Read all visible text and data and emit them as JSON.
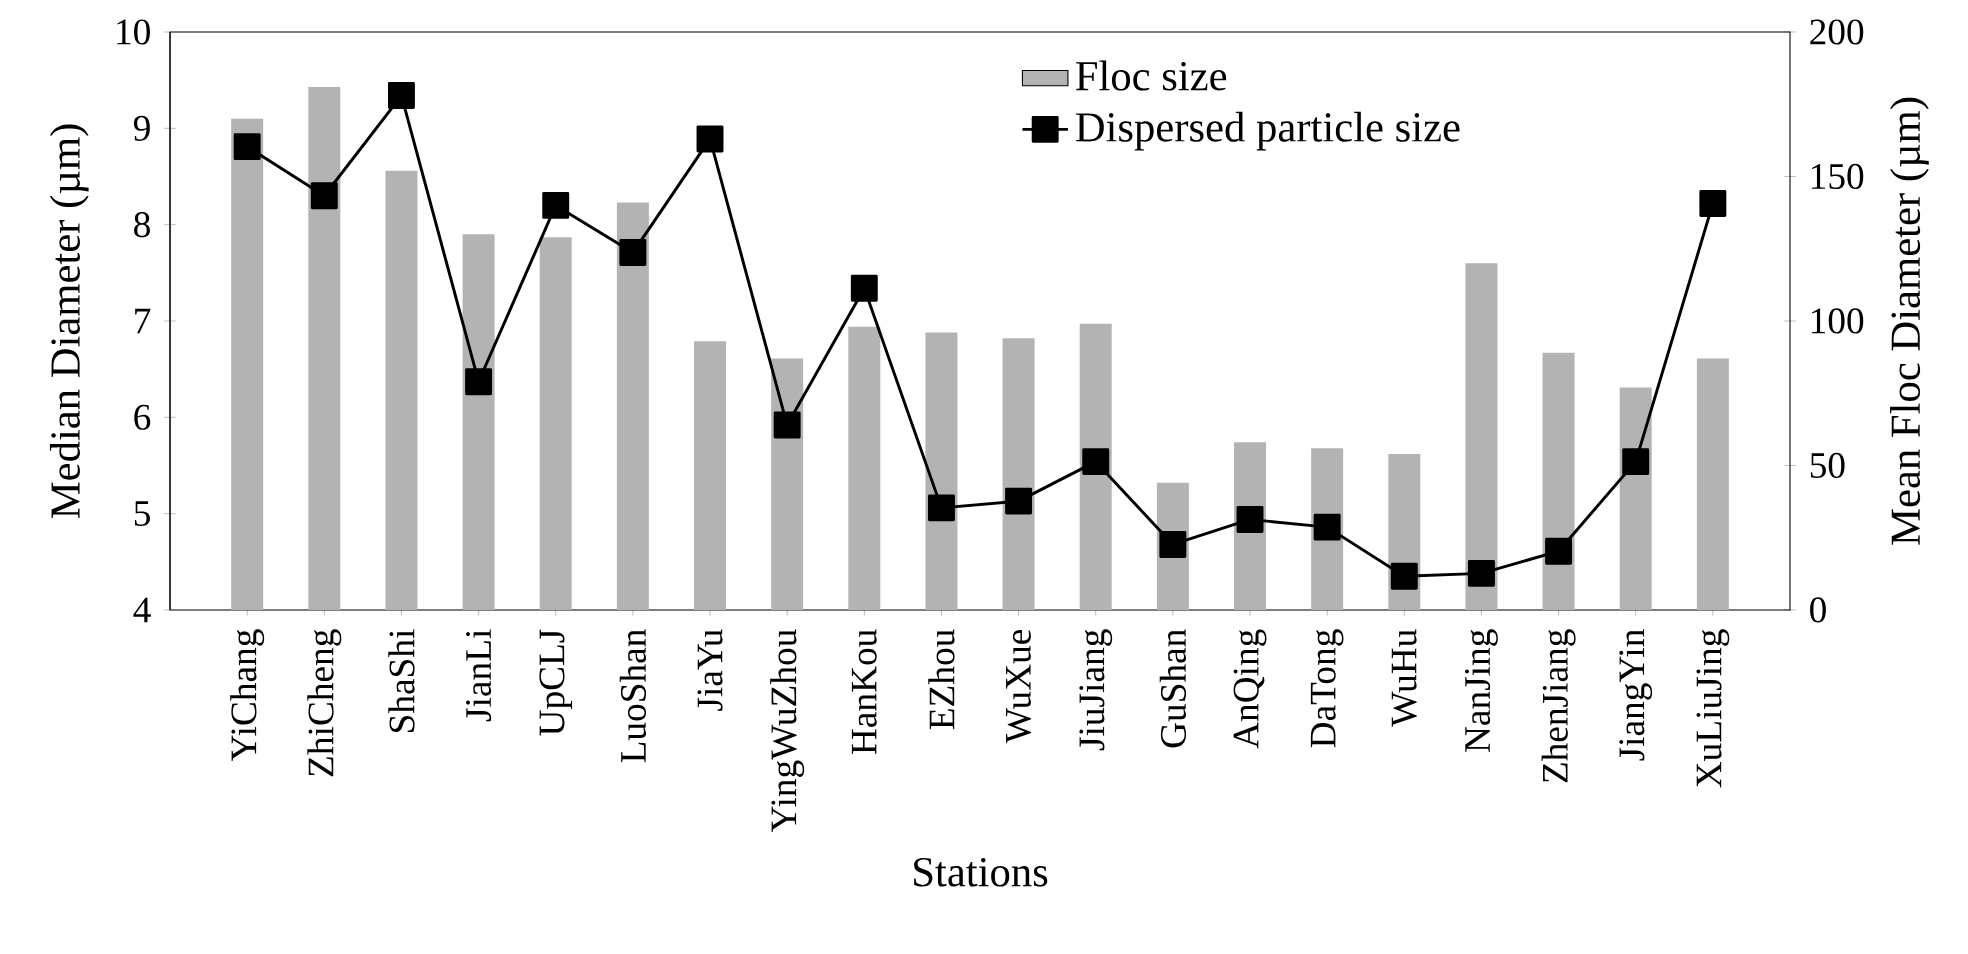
{
  "chart_data": {
    "type": "bar",
    "xlabel": "Stations",
    "ylabel": "Median Diameter (µm)",
    "y2label": "Mean Floc Diameter (µm)",
    "categories": [
      "YiChang",
      "ZhiCheng",
      "ShaShi",
      "JianLi",
      "UpCLJ",
      "LuoShan",
      "JiaYu",
      "YingWuZhou",
      "HanKou",
      "EZhou",
      "WuXue",
      "JiuJiang",
      "GuShan",
      "AnQing",
      "DaTong",
      "WuHu",
      "NanJing",
      "ZhenJiang",
      "JiangYin",
      "XuLiuJing"
    ],
    "series": [
      {
        "name": "Floc size",
        "axis": "y2",
        "color": "#b3b3b3",
        "values": [
          170,
          181,
          152,
          130,
          129,
          141,
          93,
          87,
          98,
          96,
          94,
          99,
          44,
          58,
          56,
          54,
          120,
          89,
          77,
          87
        ]
      },
      {
        "name": "Dispersed particle size",
        "type": "line",
        "axis": "y",
        "color": "#000000",
        "marker": "square",
        "values": [
          8.81,
          8.3,
          9.34,
          6.37,
          8.2,
          7.71,
          8.89,
          5.92,
          7.34,
          5.06,
          5.13,
          5.54,
          4.68,
          4.94,
          4.86,
          4.35,
          4.38,
          4.61,
          5.54,
          8.22
        ]
      }
    ],
    "ylim": [
      4,
      10
    ],
    "yticks": [
      4,
      5,
      6,
      7,
      8,
      9,
      10
    ],
    "y2lim": [
      0,
      200
    ],
    "y2ticks": [
      0,
      50,
      100,
      150,
      200
    ],
    "legend": "top right",
    "grid": false
  }
}
